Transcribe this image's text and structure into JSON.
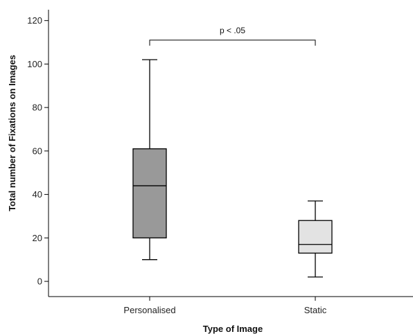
{
  "chart_data": {
    "type": "box",
    "xlabel": "Type of Image",
    "ylabel": "Total number of Fixations on Images",
    "ylim": [
      -7,
      125
    ],
    "yticks": [
      0,
      20,
      40,
      60,
      80,
      100,
      120
    ],
    "grid": false,
    "categories": [
      "Personalised",
      "Static"
    ],
    "boxes": [
      {
        "category": "Personalised",
        "min": 10,
        "q1": 20,
        "median": 44,
        "q3": 61,
        "max": 102,
        "color": "#999999"
      },
      {
        "category": "Static",
        "min": 2,
        "q1": 13,
        "median": 17,
        "q3": 28,
        "max": 37,
        "color": "#e3e3e3"
      }
    ],
    "annotation": {
      "text": "p < .05",
      "between": [
        "Personalised",
        "Static"
      ],
      "y": 111
    }
  }
}
